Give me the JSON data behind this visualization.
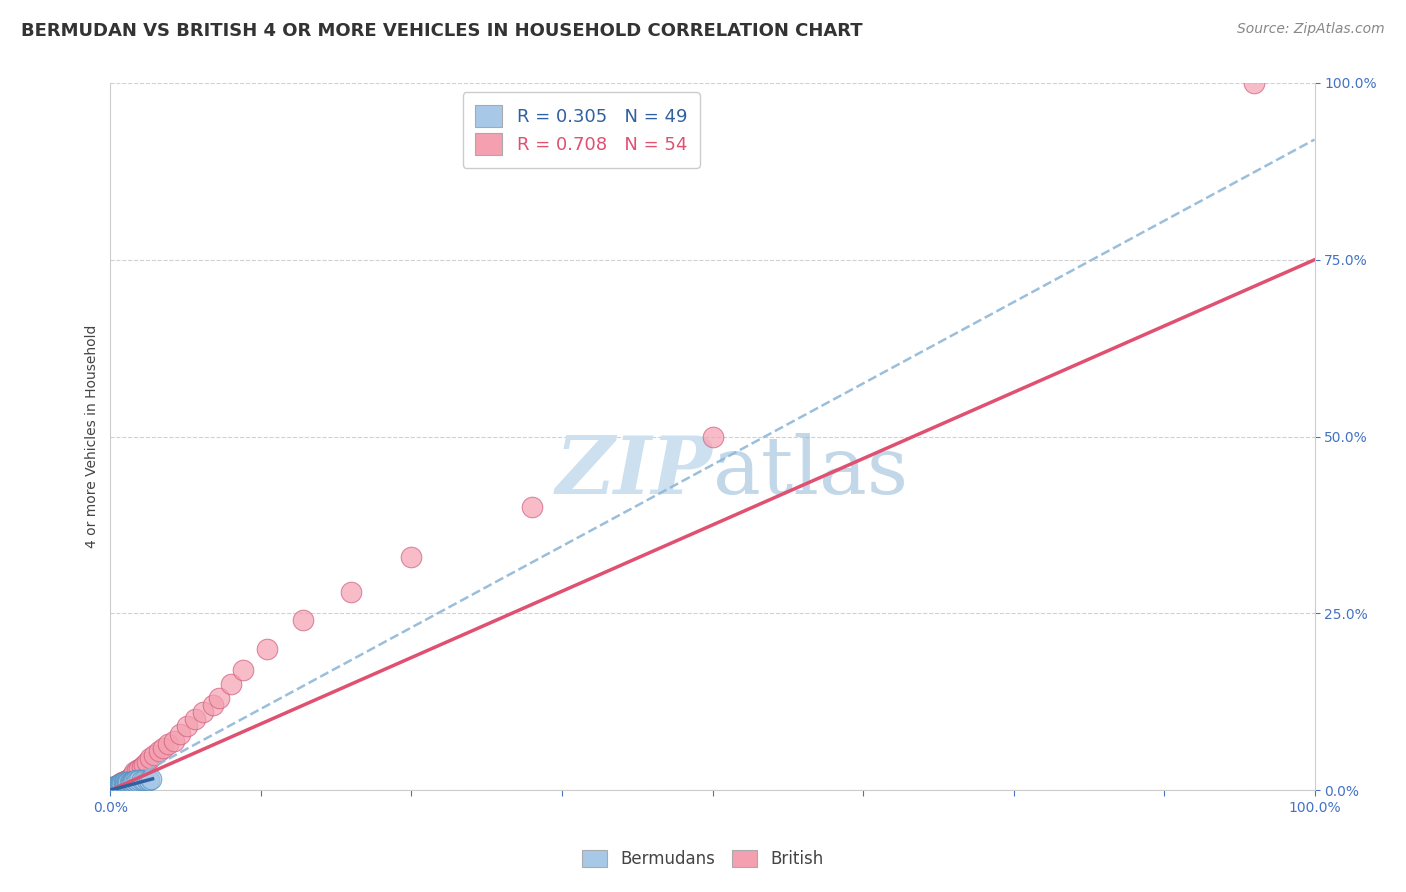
{
  "title": "BERMUDAN VS BRITISH 4 OR MORE VEHICLES IN HOUSEHOLD CORRELATION CHART",
  "source_text": "Source: ZipAtlas.com",
  "ylabel": "4 or more Vehicles in Household",
  "x_min": 0.0,
  "x_max": 1.0,
  "y_min": 0.0,
  "y_max": 1.0,
  "x_tick_labels": [
    "0.0%",
    "100.0%"
  ],
  "y_tick_labels": [
    "0.0%",
    "25.0%",
    "50.0%",
    "75.0%",
    "100.0%"
  ],
  "y_tick_positions": [
    0.0,
    0.25,
    0.5,
    0.75,
    1.0
  ],
  "bermudans_R": 0.305,
  "bermudans_N": 49,
  "british_R": 0.708,
  "british_N": 54,
  "bermudans_color": "#a8c8e8",
  "british_color": "#f4a0b0",
  "bermudans_edge_color": "#5590c0",
  "british_edge_color": "#d06080",
  "bermudans_line_color": "#3060a0",
  "british_line_color": "#e05070",
  "dashed_line_color": "#90b8d8",
  "background_color": "#ffffff",
  "grid_color": "#cccccc",
  "watermark_color": "#cce0f0",
  "title_fontsize": 13,
  "axis_label_fontsize": 10,
  "tick_fontsize": 10,
  "legend_fontsize": 13,
  "source_fontsize": 10,
  "bermudans_x": [
    0.001,
    0.001,
    0.001,
    0.001,
    0.001,
    0.001,
    0.002,
    0.002,
    0.002,
    0.002,
    0.003,
    0.003,
    0.004,
    0.004,
    0.004,
    0.005,
    0.005,
    0.005,
    0.006,
    0.006,
    0.007,
    0.007,
    0.008,
    0.008,
    0.009,
    0.009,
    0.01,
    0.01,
    0.011,
    0.011,
    0.012,
    0.012,
    0.013,
    0.014,
    0.015,
    0.015,
    0.016,
    0.017,
    0.018,
    0.019,
    0.02,
    0.021,
    0.022,
    0.024,
    0.026,
    0.028,
    0.03,
    0.032,
    0.034
  ],
  "bermudans_y": [
    0.0,
    0.001,
    0.002,
    0.003,
    0.003,
    0.004,
    0.002,
    0.003,
    0.004,
    0.005,
    0.003,
    0.004,
    0.003,
    0.004,
    0.005,
    0.004,
    0.005,
    0.006,
    0.005,
    0.006,
    0.005,
    0.007,
    0.006,
    0.008,
    0.007,
    0.009,
    0.007,
    0.009,
    0.008,
    0.01,
    0.009,
    0.011,
    0.01,
    0.011,
    0.01,
    0.012,
    0.011,
    0.012,
    0.012,
    0.013,
    0.013,
    0.014,
    0.013,
    0.014,
    0.014,
    0.015,
    0.015,
    0.015,
    0.016
  ],
  "british_x": [
    0.001,
    0.001,
    0.002,
    0.003,
    0.004,
    0.005,
    0.005,
    0.006,
    0.006,
    0.007,
    0.007,
    0.008,
    0.008,
    0.009,
    0.009,
    0.01,
    0.01,
    0.011,
    0.012,
    0.012,
    0.013,
    0.014,
    0.015,
    0.016,
    0.017,
    0.018,
    0.019,
    0.02,
    0.022,
    0.024,
    0.026,
    0.028,
    0.03,
    0.033,
    0.036,
    0.04,
    0.044,
    0.048,
    0.053,
    0.058,
    0.064,
    0.07,
    0.077,
    0.085,
    0.09,
    0.1,
    0.11,
    0.13,
    0.16,
    0.2,
    0.25,
    0.35,
    0.5,
    0.95
  ],
  "british_y": [
    0.001,
    0.003,
    0.003,
    0.004,
    0.005,
    0.005,
    0.006,
    0.006,
    0.007,
    0.007,
    0.008,
    0.008,
    0.009,
    0.009,
    0.01,
    0.01,
    0.011,
    0.012,
    0.012,
    0.013,
    0.013,
    0.014,
    0.015,
    0.016,
    0.018,
    0.02,
    0.022,
    0.025,
    0.028,
    0.03,
    0.033,
    0.036,
    0.04,
    0.045,
    0.05,
    0.055,
    0.06,
    0.065,
    0.07,
    0.08,
    0.09,
    0.1,
    0.11,
    0.12,
    0.13,
    0.15,
    0.17,
    0.2,
    0.24,
    0.28,
    0.33,
    0.4,
    0.5,
    1.0
  ],
  "british_line_x0": 0.0,
  "british_line_y0": 0.0,
  "british_line_x1": 1.0,
  "british_line_y1": 0.75,
  "dashed_line_x0": 0.0,
  "dashed_line_y0": 0.0,
  "dashed_line_x1": 1.0,
  "dashed_line_y1": 0.92,
  "bermudans_line_x0": 0.0,
  "bermudans_line_y0": 0.0,
  "bermudans_line_x1": 0.035,
  "bermudans_line_y1": 0.016
}
